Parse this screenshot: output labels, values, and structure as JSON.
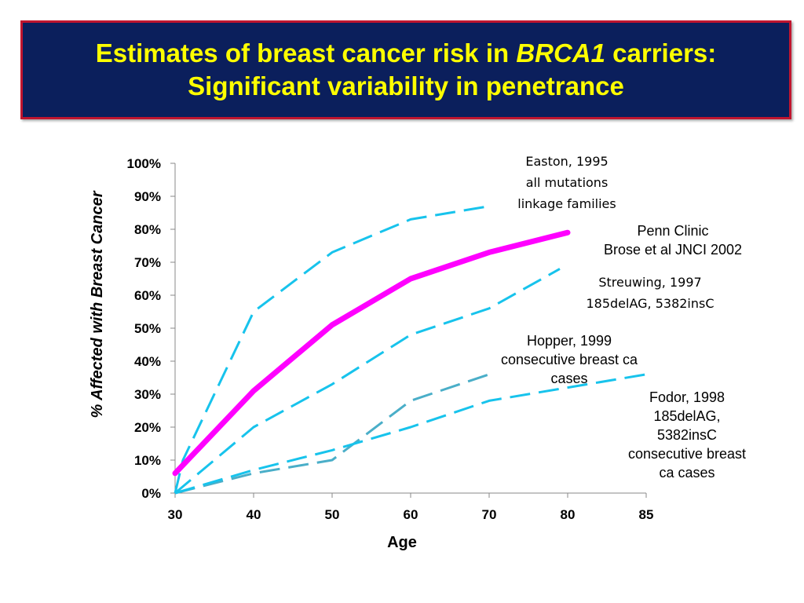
{
  "title": {
    "line1_prefix": "Estimates of breast cancer risk in ",
    "line1_italic": "BRCA1",
    "line1_suffix": " carriers:",
    "line2": "Significant variability in penetrance"
  },
  "colors": {
    "title_bg": "#0b1f5c",
    "title_border": "#c0152f",
    "title_text": "#ffff00",
    "magenta": "#ff00ff",
    "cyan": "#17c3ec",
    "teal": "#4aaec8"
  },
  "chart_data": {
    "type": "line",
    "title": "",
    "xlabel": "Age",
    "ylabel": "% Affected with Breast Cancer",
    "x_ticks": [
      "30",
      "40",
      "50",
      "60",
      "70",
      "80",
      "85"
    ],
    "y_ticks": [
      "0%",
      "10%",
      "20%",
      "30%",
      "40%",
      "50%",
      "60%",
      "70%",
      "80%",
      "90%",
      "100%"
    ],
    "ylim": [
      0,
      100
    ],
    "series": [
      {
        "name": "Easton, 1995 all mutations linkage families",
        "style": "dashed",
        "color": "#17c3ec",
        "width": 3,
        "points": [
          [
            30,
            0
          ],
          [
            31,
            10
          ],
          [
            40,
            55
          ],
          [
            50,
            73
          ],
          [
            60,
            83
          ],
          [
            70,
            87
          ]
        ]
      },
      {
        "name": "Penn Clinic Brose et al JNCI 2002",
        "style": "solid",
        "color": "#ff00ff",
        "width": 7,
        "points": [
          [
            30,
            6
          ],
          [
            40,
            31
          ],
          [
            50,
            51
          ],
          [
            60,
            65
          ],
          [
            70,
            73
          ],
          [
            80,
            79
          ]
        ]
      },
      {
        "name": "Streuwing, 1997 185delAG, 5382insC",
        "style": "dashed",
        "color": "#17c3ec",
        "width": 3,
        "points": [
          [
            30,
            0
          ],
          [
            40,
            20
          ],
          [
            50,
            33
          ],
          [
            60,
            48
          ],
          [
            70,
            56
          ],
          [
            79,
            68
          ]
        ]
      },
      {
        "name": "Hopper, 1999 consecutive breast ca cases",
        "style": "dashed",
        "color": "#4aaec8",
        "width": 3,
        "points": [
          [
            30,
            0
          ],
          [
            40,
            6
          ],
          [
            50,
            10
          ],
          [
            60,
            28
          ],
          [
            70,
            36
          ]
        ]
      },
      {
        "name": "Fodor, 1998 185delAG, 5382insC consecutive breast ca cases",
        "style": "dashed",
        "color": "#17c3ec",
        "width": 3,
        "points": [
          [
            30,
            0
          ],
          [
            40,
            7
          ],
          [
            50,
            13
          ],
          [
            60,
            20
          ],
          [
            70,
            28
          ],
          [
            80,
            32
          ],
          [
            85,
            36
          ]
        ]
      }
    ]
  },
  "annotations": {
    "easton": [
      "Easton, 1995",
      "all mutations",
      "linkage families"
    ],
    "penn": [
      "Penn Clinic",
      "Brose et al JNCI 2002"
    ],
    "streuwing": [
      "Streuwing, 1997",
      "185delAG, 5382insC"
    ],
    "hopper": [
      "Hopper, 1999",
      "consecutive breast ca",
      "cases"
    ],
    "fodor": [
      "Fodor, 1998",
      "185delAG,",
      "5382insC",
      "consecutive breast",
      "ca cases"
    ]
  }
}
